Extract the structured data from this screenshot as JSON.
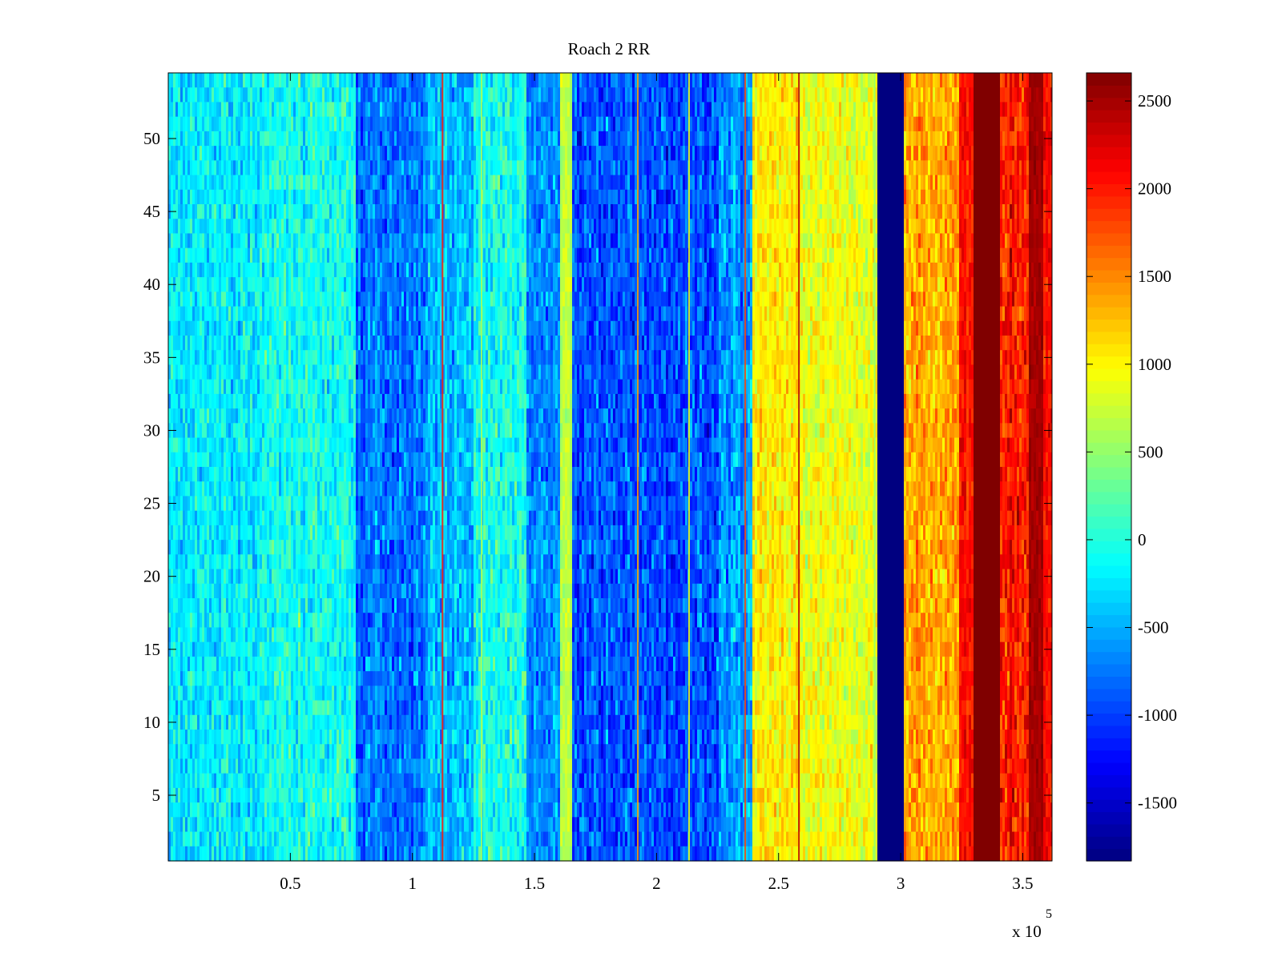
{
  "chart_data": {
    "type": "heatmap",
    "title": "Roach 2 RR",
    "xlabel": "",
    "ylabel": "",
    "x_exponent_label": "x 10",
    "x_exponent_power": "5",
    "xlim": [
      0,
      362000
    ],
    "ylim": [
      0.5,
      54.5
    ],
    "x_ticks": [
      {
        "value": 50000,
        "label": "0.5"
      },
      {
        "value": 100000,
        "label": "1"
      },
      {
        "value": 150000,
        "label": "1.5"
      },
      {
        "value": 200000,
        "label": "2"
      },
      {
        "value": 250000,
        "label": "2.5"
      },
      {
        "value": 300000,
        "label": "3"
      },
      {
        "value": 350000,
        "label": "3.5"
      }
    ],
    "y_ticks": [
      {
        "value": 5,
        "label": "5"
      },
      {
        "value": 10,
        "label": "10"
      },
      {
        "value": 15,
        "label": "15"
      },
      {
        "value": 20,
        "label": "20"
      },
      {
        "value": 25,
        "label": "25"
      },
      {
        "value": 30,
        "label": "30"
      },
      {
        "value": 35,
        "label": "35"
      },
      {
        "value": 40,
        "label": "40"
      },
      {
        "value": 45,
        "label": "45"
      },
      {
        "value": 50,
        "label": "50"
      }
    ],
    "colorbar": {
      "colormap": "jet",
      "clim": [
        -1830,
        2660
      ],
      "ticks": [
        {
          "value": -1500,
          "label": "-1500"
        },
        {
          "value": -1000,
          "label": "-1000"
        },
        {
          "value": -500,
          "label": "-500"
        },
        {
          "value": 0,
          "label": "0"
        },
        {
          "value": 500,
          "label": "500"
        },
        {
          "value": 1000,
          "label": "1000"
        },
        {
          "value": 1500,
          "label": "1500"
        },
        {
          "value": 2000,
          "label": "2000"
        },
        {
          "value": 2500,
          "label": "2500"
        }
      ]
    },
    "rows": 54,
    "column_bands": [
      {
        "x_start": 0,
        "x_end": 38000,
        "mean": -200,
        "noise": 280
      },
      {
        "x_start": 38000,
        "x_end": 77000,
        "mean": -80,
        "noise": 280
      },
      {
        "x_start": 77000,
        "x_end": 105000,
        "mean": -750,
        "noise": 300
      },
      {
        "x_start": 105000,
        "x_end": 125000,
        "mean": -450,
        "noise": 300
      },
      {
        "x_start": 125000,
        "x_end": 147000,
        "mean": -50,
        "noise": 300
      },
      {
        "x_start": 147000,
        "x_end": 160000,
        "mean": -650,
        "noise": 280
      },
      {
        "x_start": 160000,
        "x_end": 165000,
        "mean": 700,
        "noise": 150
      },
      {
        "x_start": 165000,
        "x_end": 225000,
        "mean": -900,
        "noise": 320
      },
      {
        "x_start": 225000,
        "x_end": 239000,
        "mean": -600,
        "noise": 300
      },
      {
        "x_start": 239000,
        "x_end": 259000,
        "mean": 1050,
        "noise": 230
      },
      {
        "x_start": 259000,
        "x_end": 290000,
        "mean": 880,
        "noise": 230
      },
      {
        "x_start": 290000,
        "x_end": 301000,
        "mean": -1830,
        "noise": 0
      },
      {
        "x_start": 301000,
        "x_end": 324000,
        "mean": 1350,
        "noise": 280
      },
      {
        "x_start": 324000,
        "x_end": 330000,
        "mean": 2050,
        "noise": 200
      },
      {
        "x_start": 330000,
        "x_end": 341000,
        "mean": 2660,
        "noise": 0
      },
      {
        "x_start": 341000,
        "x_end": 352000,
        "mean": 1950,
        "noise": 300
      },
      {
        "x_start": 352000,
        "x_end": 358000,
        "mean": 2500,
        "noise": 100
      },
      {
        "x_start": 358000,
        "x_end": 362000,
        "mean": 2100,
        "noise": 200
      }
    ],
    "line_features": [
      {
        "x": 112000,
        "value": 2000
      },
      {
        "x": 128000,
        "value": 600
      },
      {
        "x": 192000,
        "value": 1400
      },
      {
        "x": 213000,
        "value": 900
      },
      {
        "x": 236000,
        "value": 1800
      },
      {
        "x": 258000,
        "value": 2400
      },
      {
        "x": 289000,
        "value": 500
      }
    ]
  }
}
